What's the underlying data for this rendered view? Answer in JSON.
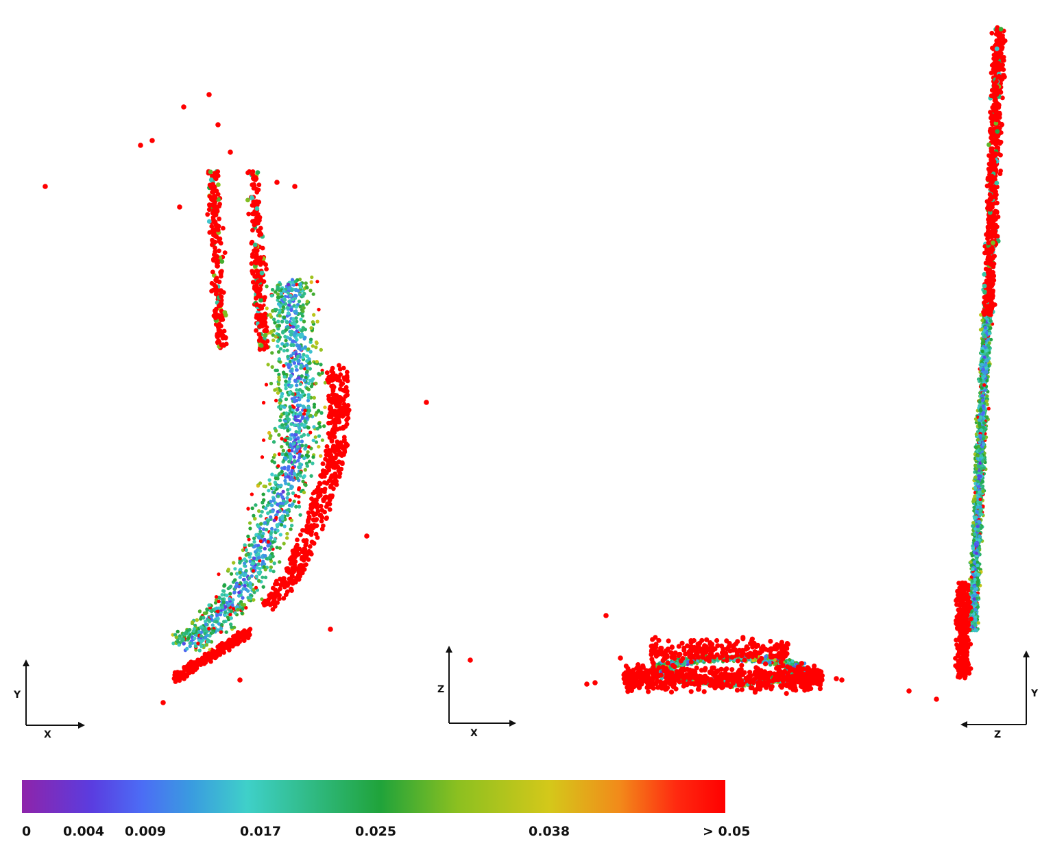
{
  "views": [
    {
      "name": "xy-view",
      "horizontal_axis": "X",
      "vertical_axis": "Y"
    },
    {
      "name": "xz-view",
      "horizontal_axis": "X",
      "vertical_axis": "Z"
    },
    {
      "name": "zy-view",
      "horizontal_axis": "Z",
      "vertical_axis": "Y"
    }
  ],
  "colorbar": {
    "tick_labels": [
      "0",
      "0.004",
      "0.009",
      "0.017",
      "0.025",
      "0.038",
      "> 0.05"
    ],
    "tick_values": [
      0,
      0.004,
      0.009,
      0.017,
      0.025,
      0.038,
      0.05
    ],
    "min": 0,
    "max": 0.05,
    "colors": [
      "#8e24aa",
      "#5a3de0",
      "#4c6cf5",
      "#3a9be0",
      "#3fd0c9",
      "#20a33a",
      "#8cc020",
      "#d4c81a",
      "#f28a1a",
      "#ff2a10",
      "#ff0000"
    ],
    "color_stops": [
      0,
      0.1,
      0.17,
      0.24,
      0.32,
      0.51,
      0.62,
      0.75,
      0.85,
      0.93,
      1.0
    ]
  }
}
